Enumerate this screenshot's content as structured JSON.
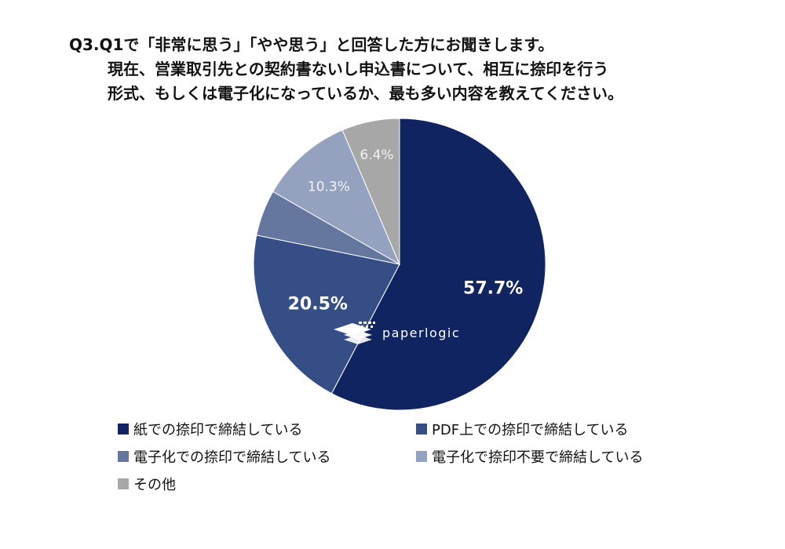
{
  "title": {
    "line1": "Q3.Q1で「非常に思う」「やや思う」と回答した方にお聞きします。",
    "line2": "現在、営業取引先との契約書ないし申込書について、相互に捺印を行う",
    "line3": "形式、もしくは電子化になっているか、最も多い内容を教えてください。"
  },
  "logo": {
    "text": "paperlogic"
  },
  "chart_data": {
    "type": "pie",
    "title": "Q3.Q1で「非常に思う」「やや思う」と回答した方にお聞きします。 現在、営業取引先との契約書ないし申込書について、相互に捺印を行う 形式、もしくは電子化になっているか、最も多い内容を教えてください。",
    "start": "12 o'clock",
    "direction": "clockwise",
    "legend_position": "bottom",
    "slices": [
      {
        "label": "紙での捺印で締結している",
        "value": 57.7,
        "display": "57.7%",
        "color": "#0f2460"
      },
      {
        "label": "PDF上での捺印で締結している",
        "value": 20.5,
        "display": "20.5%",
        "color": "#354f86"
      },
      {
        "label": "電子化での捺印で締結している",
        "value": 5.1,
        "display": "",
        "color": "#65779f"
      },
      {
        "label": "電子化で捺印不要で締結している",
        "value": 10.3,
        "display": "10.3%",
        "color": "#95a2bf"
      },
      {
        "label": "その他",
        "value": 6.4,
        "display": "6.4%",
        "color": "#a7a7a7"
      }
    ]
  }
}
